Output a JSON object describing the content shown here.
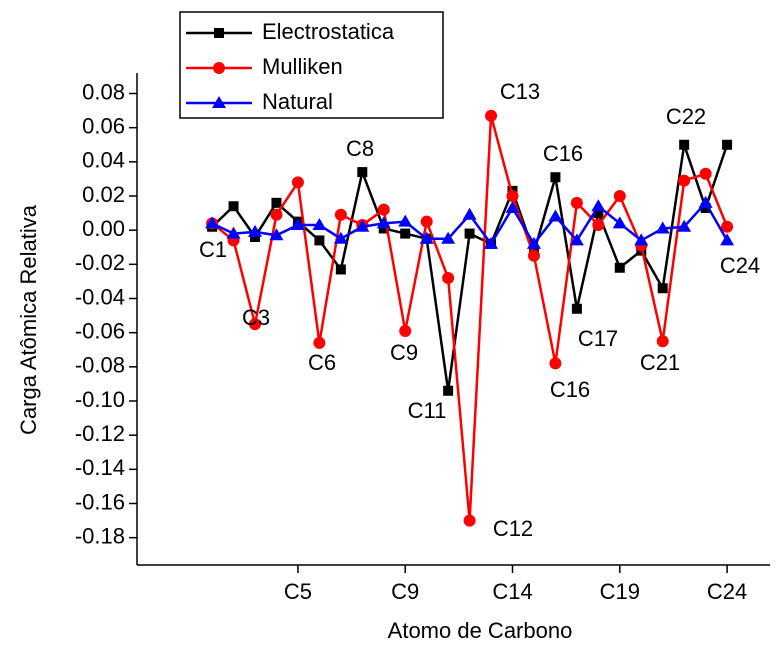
{
  "chart_data": {
    "type": "line",
    "xlabel": "Atomo de Carbono",
    "ylabel": "Carga Atômica Relativa",
    "x": [
      1,
      2,
      3,
      4,
      5,
      6,
      7,
      8,
      9,
      10,
      11,
      12,
      13,
      14,
      15,
      16,
      17,
      18,
      19,
      20,
      21,
      22,
      23,
      24,
      25
    ],
    "xlim": [
      -2.5,
      27
    ],
    "xticks": [
      {
        "value": 5,
        "label": "C5"
      },
      {
        "value": 10,
        "label": "C9"
      },
      {
        "value": 15,
        "label": "C14"
      },
      {
        "value": 20,
        "label": "C19"
      },
      {
        "value": 25,
        "label": "C24"
      }
    ],
    "ylim": [
      -0.196,
      0.092
    ],
    "yticks": [
      0.08,
      0.06,
      0.04,
      0.02,
      {
        "value": 0,
        "label": "0.00"
      },
      -0.02,
      -0.04,
      -0.06,
      -0.08,
      {
        "value": -0.1,
        "label": "-0.10"
      },
      -0.12,
      -0.14,
      -0.16,
      -0.18
    ],
    "series": [
      {
        "name": "Electrostatica",
        "color": "#000000",
        "marker": "square",
        "values": [
          0.002,
          0.014,
          -0.004,
          0.016,
          0.005,
          -0.006,
          -0.023,
          0.034,
          0.001,
          -0.002,
          -0.005,
          -0.094,
          -0.002,
          -0.008,
          0.023,
          -0.013,
          0.031,
          -0.046,
          0.01,
          -0.022,
          -0.012,
          -0.034,
          0.05,
          0.013,
          0.05
        ]
      },
      {
        "name": "Mulliken",
        "color": "#ff0000",
        "marker": "circle",
        "values": [
          0.004,
          -0.006,
          -0.055,
          0.009,
          0.028,
          -0.066,
          0.009,
          0.003,
          0.012,
          -0.059,
          0.005,
          -0.028,
          -0.17,
          0.067,
          0.02,
          -0.015,
          -0.078,
          0.016,
          0.003,
          0.02,
          -0.009,
          -0.065,
          0.029,
          0.033,
          0.002
        ]
      },
      {
        "name": "Natural",
        "color": "#0000ff",
        "marker": "triangle",
        "values": [
          0.004,
          -0.002,
          -0.001,
          -0.003,
          0.003,
          0.003,
          -0.005,
          0.002,
          0.004,
          0.005,
          -0.005,
          -0.005,
          0.009,
          -0.008,
          0.013,
          -0.008,
          0.008,
          -0.006,
          0.014,
          0.004,
          -0.006,
          0.001,
          0.002,
          0.016,
          -0.006
        ]
      }
    ],
    "annotations": [
      "C1",
      "C3",
      "C6",
      "C8",
      "C9",
      "C11",
      "C12",
      "C13",
      "C16",
      "C17",
      "C16",
      "C21",
      "C22",
      "C24"
    ]
  }
}
